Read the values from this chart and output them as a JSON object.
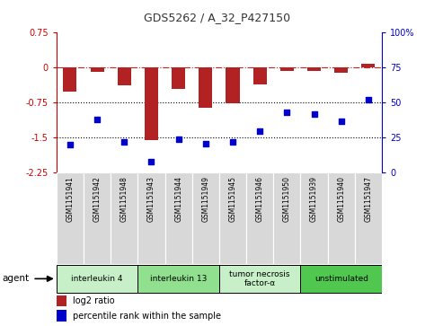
{
  "title": "GDS5262 / A_32_P427150",
  "samples": [
    "GSM1151941",
    "GSM1151942",
    "GSM1151948",
    "GSM1151943",
    "GSM1151944",
    "GSM1151949",
    "GSM1151945",
    "GSM1151946",
    "GSM1151950",
    "GSM1151939",
    "GSM1151940",
    "GSM1151947"
  ],
  "log2_ratio": [
    -0.52,
    -0.09,
    -0.38,
    -1.55,
    -0.45,
    -0.85,
    -0.76,
    -0.35,
    -0.08,
    -0.07,
    -0.1,
    0.08
  ],
  "percentile_rank": [
    20,
    38,
    22,
    8,
    24,
    21,
    22,
    30,
    43,
    42,
    37,
    52
  ],
  "ylim_left": [
    -2.25,
    0.75
  ],
  "ylim_right": [
    0,
    100
  ],
  "yticks_left": [
    -2.25,
    -1.5,
    -0.75,
    0,
    0.75
  ],
  "yticks_right": [
    0,
    25,
    50,
    75,
    100
  ],
  "groups": [
    {
      "label": "interleukin 4",
      "start": 0,
      "end": 3,
      "color": "#c8f0c8"
    },
    {
      "label": "interleukin 13",
      "start": 3,
      "end": 6,
      "color": "#90e090"
    },
    {
      "label": "tumor necrosis\nfactor-α",
      "start": 6,
      "end": 9,
      "color": "#c8f0c8"
    },
    {
      "label": "unstimulated",
      "start": 9,
      "end": 12,
      "color": "#50c850"
    }
  ],
  "bar_color": "#b22222",
  "scatter_color": "#0000cc",
  "bg_color": "#ffffff",
  "plot_bg": "#ffffff",
  "left_axis_color": "#cc0000",
  "right_axis_color": "#0000cc",
  "agent_label": "agent",
  "legend_log2": "log2 ratio",
  "legend_pct": "percentile rank within the sample",
  "sample_box_color": "#d8d8d8"
}
